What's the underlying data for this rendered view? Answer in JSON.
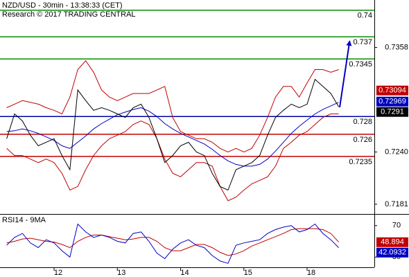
{
  "chart_data": [
    {
      "type": "line",
      "title": "NZD/USD - 30min - 13:38:33 (CET)",
      "subtitle": "Research © 2017 TRADING CENTRAL",
      "x": [
        0.25,
        0.375,
        0.5,
        0.625,
        0.75,
        0.875,
        1.0,
        1.125,
        1.25,
        1.375,
        1.5,
        1.625,
        1.75,
        1.875,
        2.0,
        2.125,
        2.25,
        2.375,
        2.5,
        2.625,
        2.75,
        2.875,
        3.0,
        3.125,
        3.25,
        3.375,
        3.5,
        3.625,
        3.75,
        3.875,
        4.0,
        4.125,
        4.25,
        4.375,
        4.5,
        4.625,
        4.75,
        4.875,
        5.0,
        5.125,
        5.25,
        5.375,
        5.5
      ],
      "xlim": [
        0.145,
        6.063
      ],
      "ylim": [
        0.717,
        0.741
      ],
      "yticks": [
        0.7358,
        {
          "value": 0.724,
          "label": "0.7240"
        },
        0.7181
      ],
      "series": [
        {
          "color": "#c00000",
          "values": [
            0.729,
            0.7294,
            0.7298,
            0.7296,
            0.7294,
            0.729,
            0.7287,
            0.7283,
            0.7302,
            0.7333,
            0.7343,
            0.733,
            0.731,
            0.7302,
            0.7298,
            0.7302,
            0.7306,
            0.7306,
            0.7306,
            0.731,
            0.7314,
            0.7279,
            0.7263,
            0.7259,
            0.7255,
            0.7255,
            0.7251,
            0.7244,
            0.724,
            0.7244,
            0.724,
            0.7244,
            0.7259,
            0.7279,
            0.7302,
            0.7314,
            0.7314,
            0.7302,
            0.7318,
            0.7333,
            0.7333,
            0.733,
            0.7333
          ]
        },
        {
          "color": "#c00000",
          "values": [
            0.7244,
            0.7236,
            0.7236,
            0.7232,
            0.7228,
            0.7232,
            0.7228,
            0.7216,
            0.7197,
            0.7201,
            0.722,
            0.7236,
            0.7247,
            0.7255,
            0.7259,
            0.7263,
            0.7271,
            0.7275,
            0.7271,
            0.7255,
            0.7232,
            0.7216,
            0.7212,
            0.722,
            0.7228,
            0.7228,
            0.7224,
            0.7201,
            0.7185,
            0.7189,
            0.7197,
            0.7204,
            0.7208,
            0.7212,
            0.7224,
            0.7244,
            0.7251,
            0.7259,
            0.7263,
            0.7271,
            0.7279,
            0.7283,
            0.7283
          ]
        },
        {
          "color": "#0000c0",
          "values": [
            0.7263,
            0.7264,
            0.7266,
            0.7264,
            0.7261,
            0.7257,
            0.7253,
            0.7247,
            0.7244,
            0.7251,
            0.7258,
            0.7266,
            0.7272,
            0.7277,
            0.7282,
            0.7285,
            0.7288,
            0.729,
            0.7286,
            0.728,
            0.7272,
            0.7266,
            0.7261,
            0.7257,
            0.7253,
            0.7249,
            0.7243,
            0.7236,
            0.723,
            0.7226,
            0.7224,
            0.7224,
            0.7226,
            0.7232,
            0.7241,
            0.7251,
            0.7261,
            0.7269,
            0.7276,
            0.7283,
            0.7288,
            0.7292,
            0.7296
          ]
        },
        {
          "color": "#000000",
          "values": [
            0.7255,
            0.7283,
            0.7275,
            0.7259,
            0.7247,
            0.7251,
            0.7255,
            0.7236,
            0.722,
            0.731,
            0.7298,
            0.7287,
            0.729,
            0.7287,
            0.7283,
            0.7279,
            0.729,
            0.7294,
            0.7279,
            0.7255,
            0.7228,
            0.7236,
            0.7247,
            0.7251,
            0.724,
            0.7236,
            0.7216,
            0.7201,
            0.7197,
            0.722,
            0.7224,
            0.7228,
            0.7236,
            0.7259,
            0.7279,
            0.7287,
            0.7294,
            0.729,
            0.7294,
            0.7322,
            0.7314,
            0.7306,
            0.7291
          ]
        }
      ],
      "levels": [
        {
          "value": 0.74,
          "color": "#009000"
        },
        {
          "value": 0.737,
          "color": "#009000"
        },
        {
          "value": 0.7345,
          "color": "#009000"
        },
        {
          "value": 0.728,
          "color": "#0000a0"
        },
        {
          "value": 0.726,
          "color": "#c00000"
        },
        {
          "value": 0.7235,
          "color": "#c00000"
        }
      ],
      "value_boxes": [
        {
          "value": 0.73094,
          "color": "#c00000"
        },
        {
          "value": 0.72969,
          "color": "#0000c0"
        },
        {
          "value": 0.7291,
          "color": "#000000"
        }
      ]
    },
    {
      "type": "line",
      "title": "RSI14 - 9MA",
      "x": [
        0.25,
        0.375,
        0.5,
        0.625,
        0.75,
        0.875,
        1.0,
        1.125,
        1.25,
        1.375,
        1.5,
        1.625,
        1.75,
        1.875,
        2.0,
        2.125,
        2.25,
        2.375,
        2.5,
        2.625,
        2.75,
        2.875,
        3.0,
        3.125,
        3.25,
        3.375,
        3.5,
        3.625,
        3.75,
        3.875,
        4.0,
        4.125,
        4.25,
        4.375,
        4.5,
        4.625,
        4.75,
        4.875,
        5.0,
        5.125,
        5.25,
        5.375,
        5.5
      ],
      "xlim": [
        0.145,
        6.063
      ],
      "xticks": [
        {
          "value": 1,
          "label": "12"
        },
        {
          "value": 2,
          "label": "13"
        },
        {
          "value": 3,
          "label": "14"
        },
        {
          "value": 4,
          "label": "15"
        },
        {
          "value": 5,
          "label": "18"
        }
      ],
      "ylim": [
        17,
        83
      ],
      "yticks": [
        30,
        70
      ],
      "series": [
        {
          "color": "#c00000",
          "values": [
            48,
            50,
            53,
            54,
            52,
            50,
            49,
            46,
            42,
            50,
            55,
            58,
            58,
            56,
            54,
            52,
            53,
            55,
            55,
            50,
            42,
            38,
            38,
            42,
            46,
            46,
            42,
            36,
            32,
            34,
            38,
            44,
            48,
            52,
            56,
            60,
            65,
            66,
            66,
            66,
            65,
            60,
            49
          ]
        },
        {
          "color": "#0000c0",
          "values": [
            45,
            55,
            60,
            48,
            42,
            52,
            48,
            38,
            30,
            72,
            62,
            55,
            58,
            55,
            50,
            48,
            60,
            62,
            50,
            35,
            28,
            40,
            48,
            52,
            45,
            42,
            32,
            25,
            22,
            45,
            48,
            50,
            52,
            60,
            65,
            68,
            70,
            62,
            65,
            72,
            60,
            52,
            42
          ]
        }
      ],
      "value_boxes": [
        {
          "value": 48.894,
          "color": "#c00000"
        },
        {
          "value": 42.0932,
          "color": "#0000c0"
        }
      ]
    }
  ]
}
